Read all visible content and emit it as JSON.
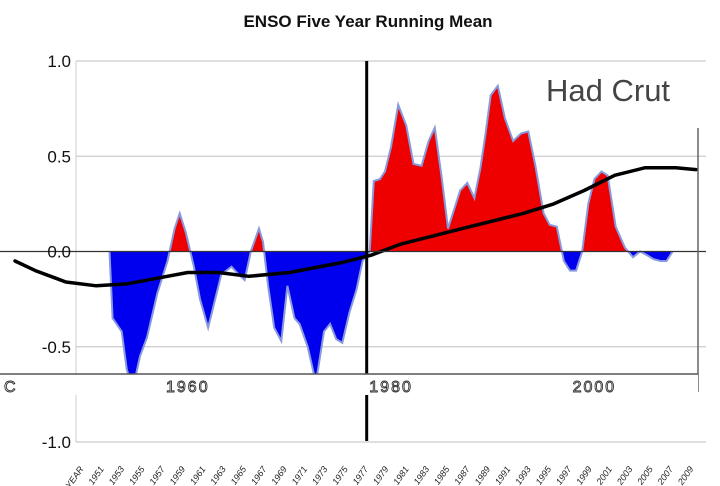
{
  "chart_data": {
    "type": "area",
    "title": "ENSO Five Year Running Mean",
    "overlay_label": "Had Crut",
    "ylim": [
      -1.0,
      1.0
    ],
    "y_ticks": [
      "1.0",
      "0.5",
      "0.0",
      "-0.5",
      "-1.0"
    ],
    "y_tick_values": [
      1.0,
      0.5,
      0.0,
      -0.5,
      -1.0
    ],
    "x_first_label": "YEAR",
    "x_tick_labels": [
      "1951",
      "1953",
      "1955",
      "1957",
      "1959",
      "1961",
      "1963",
      "1965",
      "1967",
      "1969",
      "1971",
      "1973",
      "1975",
      "1977",
      "1979",
      "1981",
      "1983",
      "1985",
      "1987",
      "1989",
      "1991",
      "1993",
      "1995",
      "1997",
      "1999",
      "2001",
      "2003",
      "2005",
      "2007",
      "2009"
    ],
    "decade_labels": [
      {
        "text": "C",
        "year": 1940
      },
      {
        "text": "1960",
        "year": 1960
      },
      {
        "text": "1980",
        "year": 1980
      },
      {
        "text": "2000",
        "year": 2000
      }
    ],
    "vertical_line_year": 1977.6,
    "colors": {
      "positive": "#ee0000",
      "negative": "#0000ee",
      "outline": "#8899dd",
      "trend": "#000000",
      "grid": "#cccccc",
      "axis": "#666666"
    },
    "enso_series": {
      "name": "ENSO five year running mean",
      "x": [
        1952.3,
        1952.6,
        1953.5,
        1954.0,
        1954.6,
        1955.3,
        1956.0,
        1957.0,
        1958.0,
        1958.7,
        1959.2,
        1959.8,
        1960.6,
        1961.2,
        1962.0,
        1962.7,
        1963.3,
        1964.3,
        1965.0,
        1965.6,
        1966.2,
        1967.0,
        1967.4,
        1967.9,
        1968.5,
        1969.2,
        1969.8,
        1970.5,
        1971.0,
        1971.8,
        1972.6,
        1973.4,
        1974.0,
        1974.6,
        1975.2,
        1975.9,
        1976.6,
        1977.2,
        1977.9,
        1978.3,
        1978.9,
        1979.4,
        1980.0,
        1980.7,
        1981.5,
        1982.2,
        1983.0,
        1983.7,
        1984.3,
        1985.0,
        1985.6,
        1986.2,
        1986.8,
        1987.5,
        1988.2,
        1988.8,
        1989.3,
        1989.8,
        1990.5,
        1991.2,
        1992.0,
        1992.8,
        1993.5,
        1994.2,
        1995.0,
        1995.6,
        1996.3,
        1997.0,
        1997.6,
        1998.2,
        1998.8,
        1999.4,
        2000.0,
        2000.7,
        2001.3,
        2002.1,
        2003.0,
        2003.8,
        2004.5,
        2005.2,
        2005.8,
        2006.5,
        2007.1,
        2007.7
      ],
      "values": [
        0.0,
        -0.35,
        -0.42,
        -0.62,
        -0.72,
        -0.55,
        -0.45,
        -0.22,
        -0.05,
        0.12,
        0.2,
        0.1,
        -0.08,
        -0.25,
        -0.4,
        -0.25,
        -0.12,
        -0.08,
        -0.12,
        -0.15,
        0.0,
        0.12,
        0.05,
        -0.18,
        -0.4,
        -0.47,
        -0.18,
        -0.35,
        -0.38,
        -0.5,
        -0.69,
        -0.42,
        -0.38,
        -0.46,
        -0.48,
        -0.32,
        -0.2,
        -0.05,
        0.0,
        0.37,
        0.38,
        0.42,
        0.55,
        0.77,
        0.66,
        0.46,
        0.45,
        0.58,
        0.65,
        0.38,
        0.12,
        0.22,
        0.32,
        0.36,
        0.28,
        0.44,
        0.62,
        0.82,
        0.87,
        0.7,
        0.58,
        0.62,
        0.63,
        0.45,
        0.2,
        0.14,
        0.13,
        -0.05,
        -0.1,
        -0.1,
        0.0,
        0.25,
        0.38,
        0.42,
        0.4,
        0.13,
        0.02,
        -0.03,
        0.0,
        -0.02,
        -0.04,
        -0.05,
        -0.05,
        0.0
      ]
    },
    "trend_series": {
      "name": "Had Crut smoothed trend",
      "x": [
        1943.0,
        1945.0,
        1947.0,
        1948.0,
        1951.0,
        1954.0,
        1957.0,
        1960.0,
        1963.0,
        1966.0,
        1970.0,
        1972.0,
        1975.0,
        1978.0,
        1981.0,
        1984.0,
        1987.0,
        1990.0,
        1993.0,
        1996.0,
        1999.0,
        2002.0,
        2005.0,
        2008.0,
        2010.0
      ],
      "values": [
        -0.05,
        -0.1,
        -0.14,
        -0.16,
        -0.18,
        -0.17,
        -0.14,
        -0.11,
        -0.11,
        -0.13,
        -0.11,
        -0.09,
        -0.06,
        -0.02,
        0.04,
        0.08,
        0.12,
        0.16,
        0.2,
        0.25,
        0.32,
        0.4,
        0.44,
        0.44,
        0.43
      ]
    }
  }
}
